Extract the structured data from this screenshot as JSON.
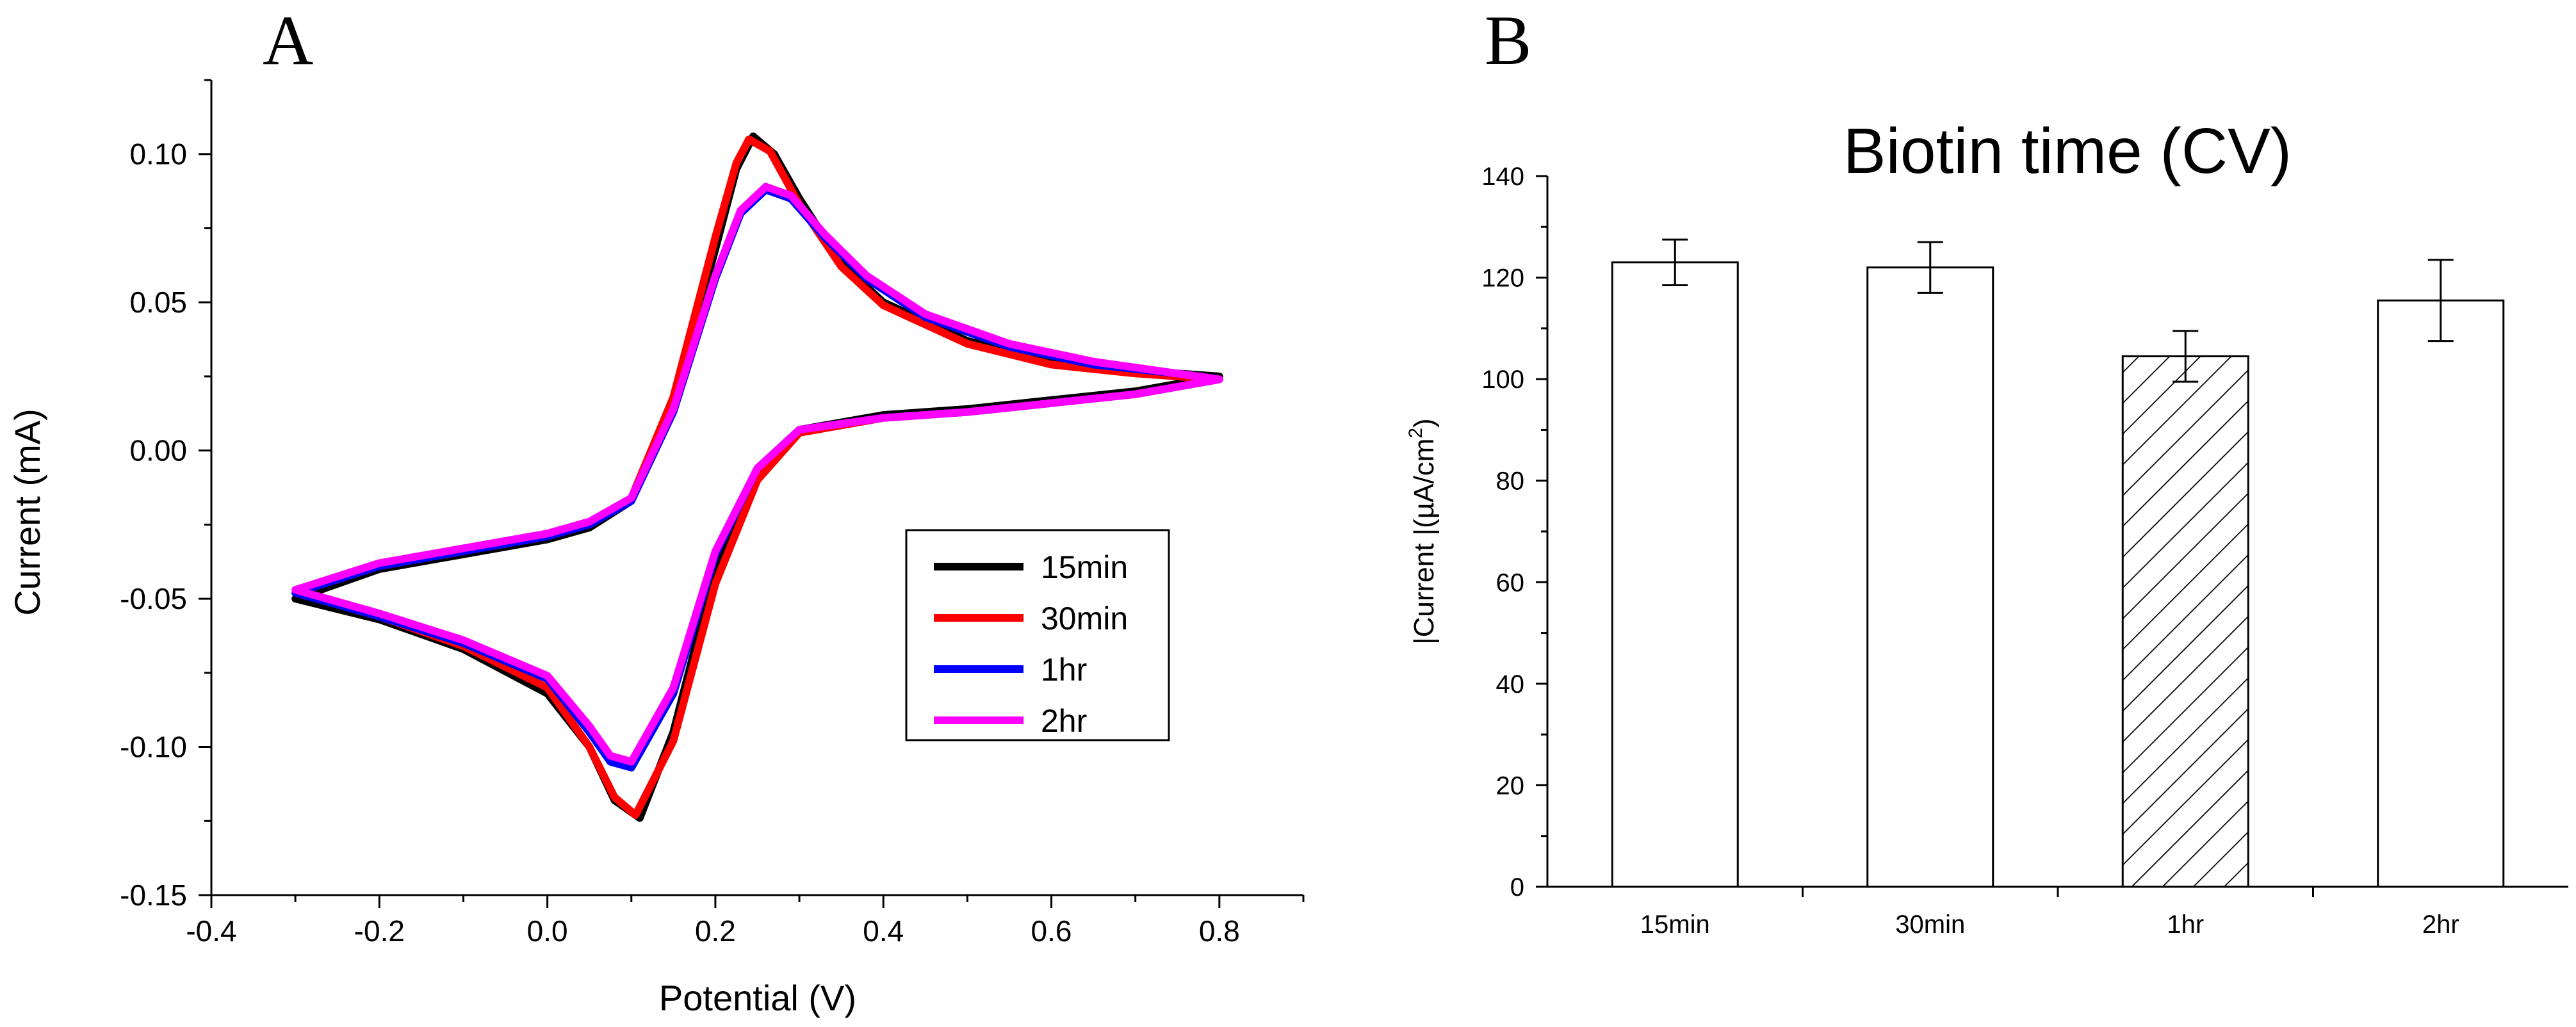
{
  "chart_data": [
    {
      "panel_label": "A",
      "type": "line",
      "title": "",
      "xlabel": "Potential (V)",
      "ylabel": "Current (mA)",
      "xlim": [
        -0.4,
        0.9
      ],
      "ylim": [
        -0.15,
        0.125
      ],
      "x_ticks": [
        "-0.4",
        "-0.2",
        "0.0",
        "0.2",
        "0.4",
        "0.6",
        "0.8"
      ],
      "y_ticks": [
        "-0.15",
        "-0.10",
        "-0.05",
        "0.00",
        "0.05",
        "0.10"
      ],
      "legend_position": "lower-right",
      "series": [
        {
          "name": "15min",
          "color": "#000000",
          "forward": [
            [
              -0.3,
              -0.05
            ],
            [
              -0.2,
              -0.04
            ],
            [
              -0.1,
              -0.035
            ],
            [
              0.0,
              -0.03
            ],
            [
              0.05,
              -0.026
            ],
            [
              0.1,
              -0.017
            ],
            [
              0.15,
              0.015
            ],
            [
              0.2,
              0.068
            ],
            [
              0.225,
              0.095
            ],
            [
              0.245,
              0.106
            ],
            [
              0.27,
              0.1
            ],
            [
              0.3,
              0.085
            ],
            [
              0.35,
              0.063
            ],
            [
              0.4,
              0.05
            ],
            [
              0.5,
              0.037
            ],
            [
              0.6,
              0.03
            ],
            [
              0.7,
              0.027
            ],
            [
              0.8,
              0.025
            ]
          ],
          "reverse": [
            [
              0.8,
              0.025
            ],
            [
              0.7,
              0.02
            ],
            [
              0.6,
              0.017
            ],
            [
              0.5,
              0.014
            ],
            [
              0.4,
              0.012
            ],
            [
              0.3,
              0.007
            ],
            [
              0.25,
              -0.008
            ],
            [
              0.2,
              -0.04
            ],
            [
              0.15,
              -0.095
            ],
            [
              0.11,
              -0.124
            ],
            [
              0.08,
              -0.118
            ],
            [
              0.05,
              -0.1
            ],
            [
              0.0,
              -0.082
            ],
            [
              -0.1,
              -0.067
            ],
            [
              -0.2,
              -0.057
            ],
            [
              -0.3,
              -0.05
            ]
          ]
        },
        {
          "name": "30min",
          "color": "#ff0000",
          "forward": [
            [
              -0.3,
              -0.048
            ],
            [
              -0.2,
              -0.039
            ],
            [
              -0.1,
              -0.034
            ],
            [
              0.0,
              -0.029
            ],
            [
              0.05,
              -0.025
            ],
            [
              0.1,
              -0.016
            ],
            [
              0.15,
              0.018
            ],
            [
              0.2,
              0.072
            ],
            [
              0.225,
              0.097
            ],
            [
              0.24,
              0.105
            ],
            [
              0.265,
              0.101
            ],
            [
              0.3,
              0.083
            ],
            [
              0.35,
              0.062
            ],
            [
              0.4,
              0.049
            ],
            [
              0.5,
              0.036
            ],
            [
              0.6,
              0.029
            ],
            [
              0.7,
              0.026
            ],
            [
              0.8,
              0.024
            ]
          ],
          "reverse": [
            [
              0.8,
              0.024
            ],
            [
              0.7,
              0.019
            ],
            [
              0.6,
              0.016
            ],
            [
              0.5,
              0.013
            ],
            [
              0.4,
              0.011
            ],
            [
              0.3,
              0.006
            ],
            [
              0.25,
              -0.01
            ],
            [
              0.2,
              -0.045
            ],
            [
              0.15,
              -0.098
            ],
            [
              0.105,
              -0.123
            ],
            [
              0.08,
              -0.117
            ],
            [
              0.05,
              -0.1
            ],
            [
              0.0,
              -0.08
            ],
            [
              -0.1,
              -0.066
            ],
            [
              -0.2,
              -0.056
            ],
            [
              -0.3,
              -0.048
            ]
          ]
        },
        {
          "name": "1hr",
          "color": "#0000ff",
          "forward": [
            [
              -0.3,
              -0.048
            ],
            [
              -0.2,
              -0.039
            ],
            [
              -0.1,
              -0.034
            ],
            [
              0.0,
              -0.029
            ],
            [
              0.05,
              -0.025
            ],
            [
              0.1,
              -0.017
            ],
            [
              0.15,
              0.013
            ],
            [
              0.2,
              0.058
            ],
            [
              0.23,
              0.08
            ],
            [
              0.26,
              0.088
            ],
            [
              0.29,
              0.085
            ],
            [
              0.33,
              0.072
            ],
            [
              0.38,
              0.058
            ],
            [
              0.45,
              0.045
            ],
            [
              0.55,
              0.035
            ],
            [
              0.65,
              0.029
            ],
            [
              0.75,
              0.026
            ],
            [
              0.8,
              0.024
            ]
          ],
          "reverse": [
            [
              0.8,
              0.024
            ],
            [
              0.7,
              0.019
            ],
            [
              0.6,
              0.016
            ],
            [
              0.5,
              0.013
            ],
            [
              0.4,
              0.011
            ],
            [
              0.3,
              0.007
            ],
            [
              0.25,
              -0.006
            ],
            [
              0.2,
              -0.035
            ],
            [
              0.15,
              -0.082
            ],
            [
              0.1,
              -0.107
            ],
            [
              0.075,
              -0.105
            ],
            [
              0.05,
              -0.095
            ],
            [
              0.0,
              -0.077
            ],
            [
              -0.1,
              -0.065
            ],
            [
              -0.2,
              -0.056
            ],
            [
              -0.3,
              -0.048
            ]
          ]
        },
        {
          "name": "2hr",
          "color": "#ff00ff",
          "forward": [
            [
              -0.3,
              -0.047
            ],
            [
              -0.2,
              -0.038
            ],
            [
              -0.1,
              -0.033
            ],
            [
              0.0,
              -0.028
            ],
            [
              0.05,
              -0.024
            ],
            [
              0.1,
              -0.016
            ],
            [
              0.15,
              0.014
            ],
            [
              0.2,
              0.059
            ],
            [
              0.23,
              0.081
            ],
            [
              0.26,
              0.089
            ],
            [
              0.29,
              0.086
            ],
            [
              0.33,
              0.073
            ],
            [
              0.38,
              0.059
            ],
            [
              0.45,
              0.046
            ],
            [
              0.55,
              0.036
            ],
            [
              0.65,
              0.03
            ],
            [
              0.75,
              0.026
            ],
            [
              0.8,
              0.024
            ]
          ],
          "reverse": [
            [
              0.8,
              0.024
            ],
            [
              0.7,
              0.019
            ],
            [
              0.6,
              0.016
            ],
            [
              0.5,
              0.013
            ],
            [
              0.4,
              0.011
            ],
            [
              0.3,
              0.007
            ],
            [
              0.25,
              -0.006
            ],
            [
              0.2,
              -0.034
            ],
            [
              0.15,
              -0.08
            ],
            [
              0.1,
              -0.105
            ],
            [
              0.075,
              -0.103
            ],
            [
              0.05,
              -0.093
            ],
            [
              0.0,
              -0.076
            ],
            [
              -0.1,
              -0.064
            ],
            [
              -0.2,
              -0.055
            ],
            [
              -0.3,
              -0.047
            ]
          ]
        }
      ]
    },
    {
      "panel_label": "B",
      "type": "bar",
      "title": "Biotin time (CV)",
      "xlabel": "",
      "ylabel_main": "|Current |(µA/cm",
      "ylabel_sup": "2",
      "ylabel_tail": ")",
      "ylim": [
        0,
        140
      ],
      "y_ticks": [
        "0",
        "20",
        "40",
        "60",
        "80",
        "100",
        "120",
        "140"
      ],
      "categories": [
        "15min",
        "30min",
        "1hr",
        "2hr"
      ],
      "values": [
        123,
        122,
        104.5,
        115.5
      ],
      "errors": [
        4.5,
        5,
        5,
        8
      ],
      "hatched": [
        false,
        false,
        true,
        false
      ]
    }
  ]
}
